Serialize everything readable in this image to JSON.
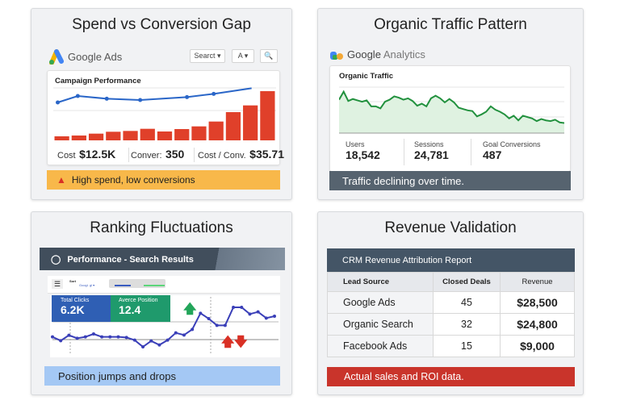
{
  "cards": {
    "ads": {
      "title": "Spend vs Conversion Gap",
      "brand": "Google Ads",
      "search_label": "Searct ▾",
      "font_btn": "A ▾",
      "panel_title": "Campaign Performance",
      "bars": [
        15,
        18,
        25,
        32,
        35,
        43,
        33,
        42,
        52,
        70,
        105,
        130,
        183
      ],
      "line": [
        [
          0.02,
          257
        ],
        [
          0.11,
          233
        ],
        [
          0.24,
          243
        ],
        [
          0.39,
          248
        ],
        [
          0.6,
          237
        ],
        [
          0.72,
          225
        ],
        [
          0.89,
          204
        ]
      ],
      "metrics": [
        {
          "label": "Cost",
          "value": "$12.5K"
        },
        {
          "label": "Conver:",
          "value": "350"
        },
        {
          "label": "Cost / Conv.",
          "value": "$35.71"
        }
      ],
      "alert": "High spend, low conversions",
      "alert_color": "#f8b84a",
      "bar_color": "#e0402a",
      "line_color": "#2a66c8"
    },
    "analytics": {
      "title": "Organic Traffic Pattern",
      "brand_a": "Google",
      "brand_b": "Analytics",
      "panel_title": "Organic Traffic",
      "series": [
        70,
        82,
        68,
        71,
        69,
        67,
        69,
        60,
        60,
        57,
        67,
        70,
        75,
        73,
        70,
        72,
        68,
        61,
        64,
        60,
        72,
        76,
        72,
        66,
        71,
        66,
        58,
        56,
        54,
        53,
        45,
        48,
        52,
        60,
        55,
        52,
        48,
        42,
        46,
        39,
        46,
        44,
        42,
        38,
        41,
        39,
        38,
        40,
        36,
        35
      ],
      "stats": [
        {
          "label": "Users",
          "value": "18,542"
        },
        {
          "label": "Sessions",
          "value": "24,781"
        },
        {
          "label": "Goal Conversions",
          "value": "487"
        }
      ],
      "footer": "Traffic declining over time."
    },
    "ranking": {
      "title": "Ranking Fluctuations",
      "header": "Performance - Search Results",
      "toolbar_text": "Sort",
      "toolbar_link": "Googl. gl ▾",
      "clicks_label": "Total Clicks",
      "clicks_value": "6.2K",
      "position_label": "Averce Position",
      "position_value": "12.4",
      "series": [
        353,
        367,
        347,
        358,
        353,
        342,
        353,
        353,
        353,
        355,
        365,
        390,
        368,
        383,
        365,
        338,
        346,
        325,
        265,
        285,
        310,
        310,
        243,
        243,
        268,
        260,
        283,
        276
      ],
      "footer": "Position jumps and drops"
    },
    "crm": {
      "title": "Revenue Validation",
      "header": "CRM Revenue Attribution Report",
      "columns": [
        "Lead Source",
        "Closed Deals",
        "Revenue"
      ],
      "rows": [
        [
          "Google Ads",
          "45",
          "$28,500"
        ],
        [
          "Organic Search",
          "32",
          "$24,800"
        ],
        [
          "Facebook Ads",
          "15",
          "$9,000"
        ]
      ],
      "footer": "Actual sales and ROI data."
    }
  }
}
